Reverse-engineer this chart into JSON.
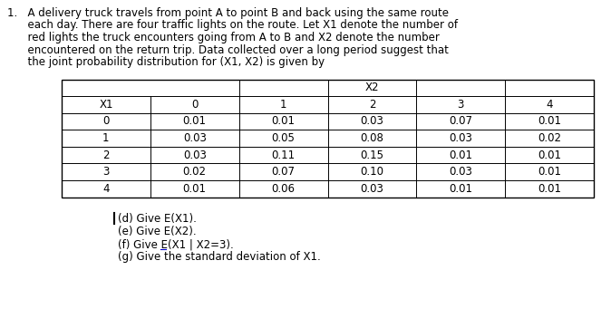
{
  "para_lines": [
    "1.   A delivery truck travels from point A to point B and back using the same route",
    "      each day. There are four traffic lights on the route. Let X1 denote the number of",
    "      red lights the truck encounters going from A to B and X2 denote the number",
    "      encountered on the return trip. Data collected over a long period suggest that",
    "      the joint probability distribution for (X1, X2) is given by"
  ],
  "x2_label": "X2",
  "x1_label": "X1",
  "col_headers": [
    "0",
    "1",
    "2",
    "3",
    "4"
  ],
  "row_headers": [
    "0",
    "1",
    "2",
    "3",
    "4"
  ],
  "table_data": [
    [
      0.01,
      0.01,
      0.03,
      0.07,
      0.01
    ],
    [
      0.03,
      0.05,
      0.08,
      0.03,
      0.02
    ],
    [
      0.03,
      0.11,
      0.15,
      0.01,
      0.01
    ],
    [
      0.02,
      0.07,
      0.1,
      0.03,
      0.01
    ],
    [
      0.01,
      0.06,
      0.03,
      0.01,
      0.01
    ]
  ],
  "q_lines": [
    "(d) Give E(X1).",
    "(e) Give E(X2).",
    "(f) Give E(X1 | X2=3).",
    "(g) Give the standard deviation of X1."
  ],
  "bg_color": "#ffffff",
  "text_color": "#000000",
  "font_size": 8.5,
  "table_font_size": 8.5
}
